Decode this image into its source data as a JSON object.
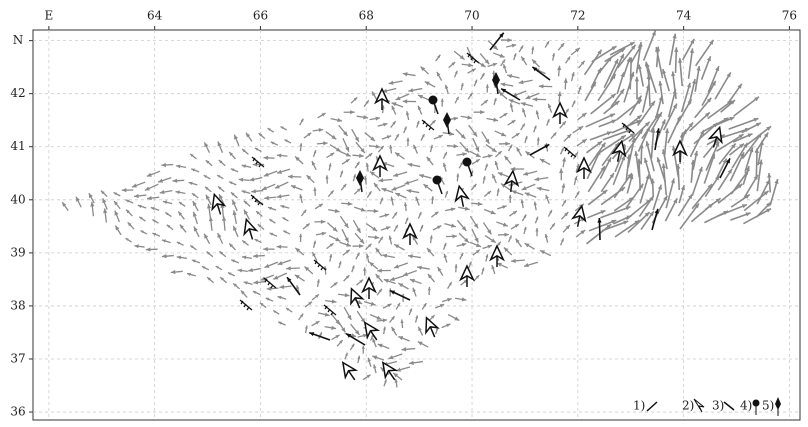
{
  "chart_data": {
    "type": "quiver",
    "xlim": [
      61.7,
      76.2
    ],
    "ylim": [
      35.85,
      43.2
    ],
    "xticks": [
      {
        "value": 62,
        "label": "E"
      },
      64,
      66,
      68,
      70,
      72,
      74,
      76
    ],
    "yticks": [
      36,
      37,
      38,
      39,
      40,
      41,
      42,
      {
        "value": 43,
        "label": "N"
      }
    ],
    "grid": true,
    "legend": [
      "1)",
      "2)",
      "3)",
      "4)",
      "5)"
    ]
  }
}
